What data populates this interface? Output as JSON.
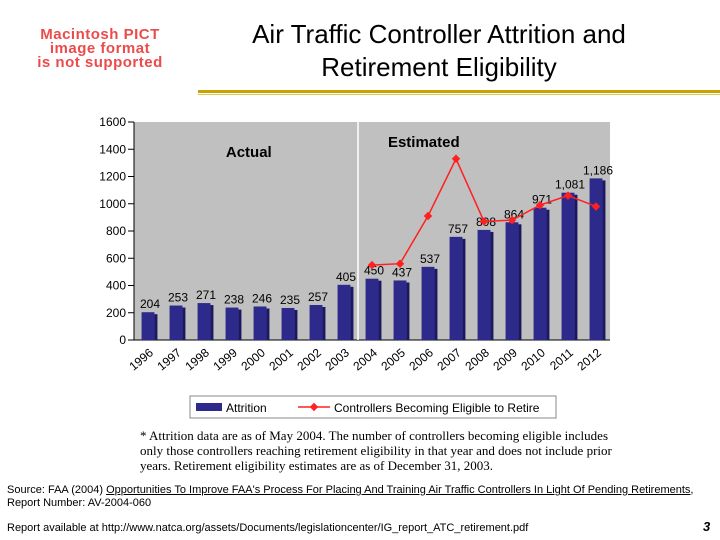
{
  "placeholder_image": {
    "lines": [
      "Macintosh PICT",
      "image format",
      "is not supported"
    ]
  },
  "slide": {
    "title_line1": "Air Traffic Controller Attrition and",
    "title_line2": "Retirement Eligibility",
    "page_number": "3"
  },
  "colors": {
    "bar": "#2d2a8c",
    "line": "#ff2020",
    "plot_bg": "#c0c0c0",
    "rule": "#c8a400"
  },
  "chart_data": {
    "type": "bar",
    "categories": [
      "1996",
      "1997",
      "1998",
      "1999",
      "2000",
      "2001",
      "2002",
      "2003",
      "2004",
      "2005",
      "2006",
      "2007",
      "2008",
      "2009",
      "2010",
      "2011",
      "2012"
    ],
    "ylim": [
      0,
      1600
    ],
    "yticks": [
      0,
      200,
      400,
      600,
      800,
      1000,
      1200,
      1400,
      1600
    ],
    "region_labels": {
      "actual": "Actual",
      "estimated": "Estimated"
    },
    "series": [
      {
        "name": "Attrition",
        "kind": "bar",
        "values": [
          204,
          253,
          271,
          238,
          246,
          235,
          257,
          405,
          450,
          437,
          537,
          757,
          808,
          864,
          971,
          1081,
          1186
        ],
        "labels": [
          "204",
          "253",
          "271",
          "238",
          "246",
          "235",
          "257",
          "405",
          "450",
          "437",
          "537",
          "757",
          "808",
          "864",
          "971",
          "1,081",
          "1,186"
        ]
      },
      {
        "name": "Controllers Becoming Eligible to Retire",
        "kind": "line",
        "x": [
          "2004",
          "2005",
          "2006",
          "2007",
          "2008",
          "2009",
          "2010",
          "2011",
          "2012"
        ],
        "values": [
          550,
          560,
          910,
          1330,
          870,
          880,
          990,
          1060,
          980
        ]
      }
    ],
    "legend_position": "bottom"
  },
  "footnote": {
    "line1": "* Attrition data are as of May 2004.  The number of controllers becoming eligible includes",
    "line2": "only those controllers reaching retirement eligibility in that year and does not include prior",
    "line3": "years.   Retirement eligibility estimates are as of December 31, 2003."
  },
  "source": {
    "prefix": "Source: FAA (2004) ",
    "link": "Opportunities To Improve FAA's Process For Placing And Training Air Traffic Controllers In Light Of Pending Retirements",
    "suffix": ", Report Number: AV-2004-060"
  },
  "report_line": "Report available at http://www.natca.org/assets/Documents/legislationcenter/IG_report_ATC_retirement.pdf"
}
